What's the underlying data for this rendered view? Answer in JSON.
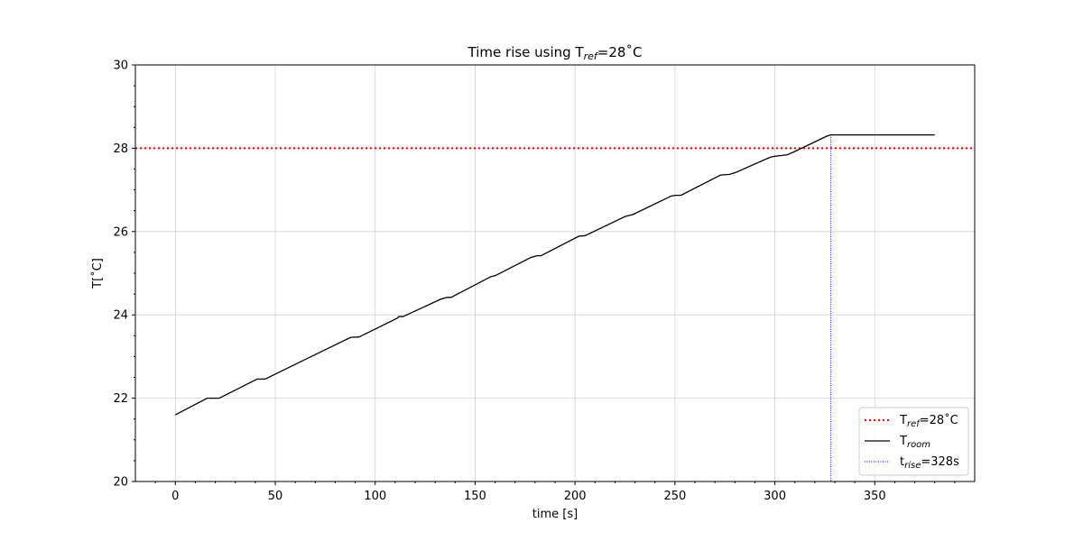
{
  "chart_data": {
    "type": "line",
    "title": "Time rise using T",
    "title_sub": "ref",
    "title_suffix": "=28˚C",
    "xlabel": "time [s]",
    "ylabel": "T[˚C]",
    "xlim": [
      -20,
      400
    ],
    "ylim": [
      20,
      30
    ],
    "xticks": [
      0,
      50,
      100,
      150,
      200,
      250,
      300,
      350
    ],
    "yticks": [
      20,
      22,
      24,
      26,
      28,
      30
    ],
    "grid": true,
    "legend_position": "lower-right",
    "series": [
      {
        "name": "T",
        "name_sub": "room",
        "color": "#000000",
        "style": "solid",
        "points": [
          [
            0,
            21.6
          ],
          [
            16,
            22.0
          ],
          [
            22,
            22.0
          ],
          [
            41,
            22.46
          ],
          [
            45,
            22.46
          ],
          [
            68,
            23.0
          ],
          [
            86,
            23.42
          ],
          [
            88,
            23.46
          ],
          [
            92,
            23.47
          ],
          [
            111,
            23.92
          ],
          [
            112,
            23.96
          ],
          [
            114,
            23.96
          ],
          [
            133,
            24.38
          ],
          [
            136,
            24.42
          ],
          [
            138,
            24.42
          ],
          [
            158,
            24.92
          ],
          [
            160,
            24.94
          ],
          [
            178,
            25.38
          ],
          [
            181,
            25.42
          ],
          [
            183,
            25.42
          ],
          [
            202,
            25.89
          ],
          [
            205,
            25.9
          ],
          [
            225,
            26.36
          ],
          [
            229,
            26.41
          ],
          [
            248,
            26.85
          ],
          [
            250,
            26.87
          ],
          [
            253,
            26.87
          ],
          [
            273,
            27.36
          ],
          [
            277,
            27.37
          ],
          [
            280,
            27.41
          ],
          [
            297,
            27.77
          ],
          [
            299,
            27.8
          ],
          [
            302,
            27.82
          ],
          [
            306,
            27.84
          ],
          [
            309,
            27.9
          ],
          [
            326,
            28.29
          ],
          [
            328,
            28.32
          ],
          [
            380,
            28.32
          ]
        ]
      },
      {
        "name": "T",
        "name_sub": "ref",
        "name_suffix": "=28˚C",
        "color": "#ff0000",
        "style": "dotted",
        "y": 28
      },
      {
        "name": "t",
        "name_sub": "rise",
        "name_suffix": "=328s",
        "color": "#0000ff",
        "style": "dotted-thin",
        "x": 328,
        "y_top": 28.32
      }
    ]
  }
}
